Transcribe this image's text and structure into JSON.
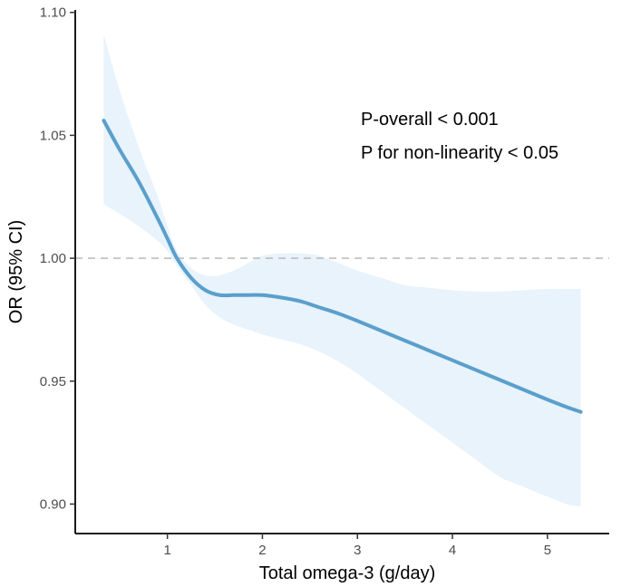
{
  "chart_data": {
    "type": "line",
    "xlabel": "Total omega-3 (g/day)",
    "ylabel": "OR (95% CI)",
    "xlim": [
      0.03,
      5.65
    ],
    "ylim": [
      0.888,
      1.101
    ],
    "x_ticks": [
      1,
      2,
      3,
      4,
      5
    ],
    "x_tick_labels": [
      "1",
      "2",
      "3",
      "4",
      "5"
    ],
    "y_ticks": [
      0.9,
      0.95,
      1.0,
      1.05,
      1.1
    ],
    "y_tick_labels": [
      "0.90",
      "0.95",
      "1.00",
      "1.05",
      "1.10"
    ],
    "reference_line": {
      "y": 1.0,
      "style": "dashed",
      "color": "#bdbdbd"
    },
    "series": [
      {
        "name": "OR",
        "color": "#5b9fcb",
        "x": [
          0.33,
          0.5,
          0.7,
          0.9,
          1.0,
          1.1,
          1.25,
          1.4,
          1.55,
          1.7,
          1.85,
          2.0,
          2.2,
          2.4,
          2.6,
          2.8,
          3.0,
          3.25,
          3.5,
          3.75,
          4.0,
          4.25,
          4.5,
          4.75,
          5.0,
          5.2,
          5.35
        ],
        "y": [
          1.056,
          1.044,
          1.031,
          1.016,
          1.008,
          1.0,
          0.992,
          0.987,
          0.985,
          0.985,
          0.985,
          0.985,
          0.984,
          0.9825,
          0.98,
          0.9775,
          0.9745,
          0.9705,
          0.9665,
          0.9625,
          0.9585,
          0.9545,
          0.9505,
          0.9465,
          0.9425,
          0.9395,
          0.9375
        ]
      }
    ],
    "confidence_band": {
      "color": "#e8f3fc",
      "x": [
        0.33,
        0.5,
        0.7,
        0.9,
        1.0,
        1.1,
        1.25,
        1.4,
        1.55,
        1.7,
        1.85,
        2.0,
        2.2,
        2.4,
        2.6,
        2.8,
        3.0,
        3.25,
        3.5,
        3.75,
        4.0,
        4.25,
        4.5,
        4.75,
        5.0,
        5.2,
        5.35
      ],
      "upper": [
        1.091,
        1.068,
        1.045,
        1.025,
        1.013,
        1.003,
        0.996,
        0.993,
        0.993,
        0.995,
        0.998,
        1.001,
        1.002,
        1.002,
        1.001,
        0.998,
        0.995,
        0.992,
        0.989,
        0.988,
        0.987,
        0.9865,
        0.9865,
        0.987,
        0.9875,
        0.9875,
        0.9875
      ],
      "lower": [
        1.022,
        1.018,
        1.013,
        1.007,
        1.003,
        0.997,
        0.989,
        0.981,
        0.976,
        0.973,
        0.971,
        0.969,
        0.967,
        0.965,
        0.962,
        0.958,
        0.953,
        0.946,
        0.939,
        0.932,
        0.925,
        0.918,
        0.911,
        0.907,
        0.903,
        0.9,
        0.899
      ]
    },
    "annotations": [
      "P-overall < 0.001",
      "P for non-linearity < 0.05"
    ]
  }
}
